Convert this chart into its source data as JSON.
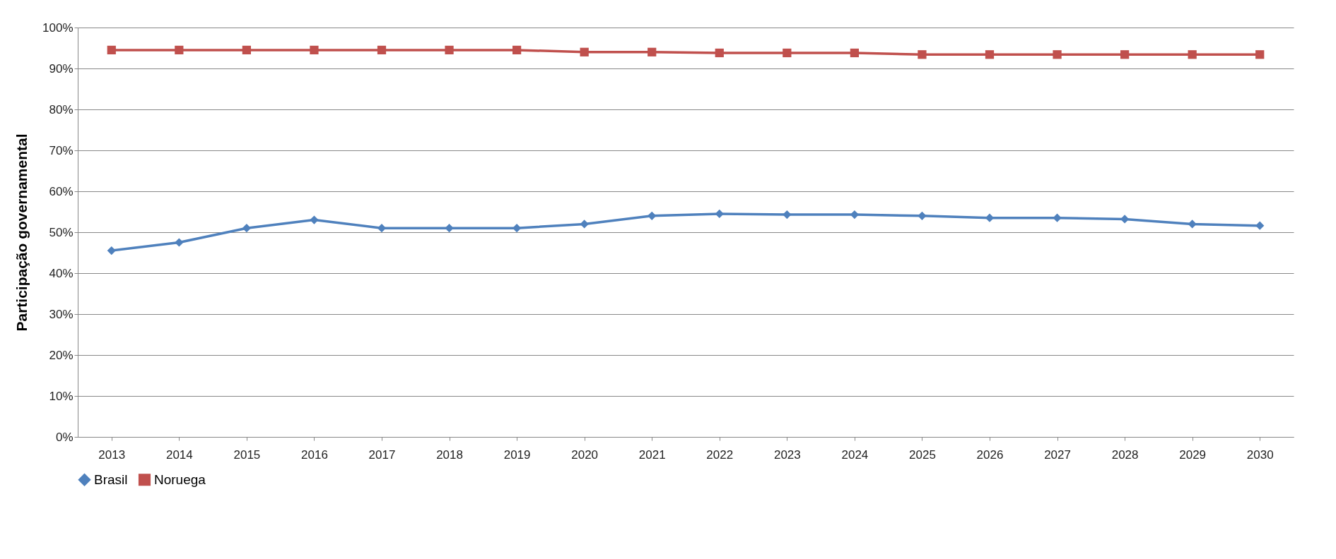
{
  "chart_data": {
    "type": "line",
    "ylabel": "Participação governamental",
    "categories": [
      "2013",
      "2014",
      "2015",
      "2016",
      "2017",
      "2018",
      "2019",
      "2020",
      "2021",
      "2022",
      "2023",
      "2024",
      "2025",
      "2026",
      "2027",
      "2028",
      "2029",
      "2030"
    ],
    "series": [
      {
        "name": "Brasil",
        "color": "#4f81bd",
        "marker": "diamond",
        "values": [
          45.5,
          47.5,
          51,
          53,
          51,
          51,
          51,
          52,
          54,
          54.5,
          54.3,
          54.3,
          54,
          53.5,
          53.5,
          53.2,
          52,
          51.6
        ]
      },
      {
        "name": "Noruega",
        "color": "#c0504d",
        "marker": "square",
        "values": [
          94.5,
          94.5,
          94.5,
          94.5,
          94.5,
          94.5,
          94.5,
          94,
          94,
          93.8,
          93.8,
          93.8,
          93.4,
          93.4,
          93.4,
          93.4,
          93.4,
          93.4
        ]
      }
    ],
    "ylim": [
      0,
      100
    ],
    "yticks": [
      {
        "value": 0,
        "label": "0%"
      },
      {
        "value": 10,
        "label": "10%"
      },
      {
        "value": 20,
        "label": "20%"
      },
      {
        "value": 30,
        "label": "30%"
      },
      {
        "value": 40,
        "label": "40%"
      },
      {
        "value": 50,
        "label": "50%"
      },
      {
        "value": 60,
        "label": "60%"
      },
      {
        "value": 70,
        "label": "70%"
      },
      {
        "value": 80,
        "label": "80%"
      },
      {
        "value": 90,
        "label": "90%"
      },
      {
        "value": 100,
        "label": "100%"
      }
    ],
    "grid": "y",
    "legend": "bottom",
    "line_style": "solid"
  }
}
